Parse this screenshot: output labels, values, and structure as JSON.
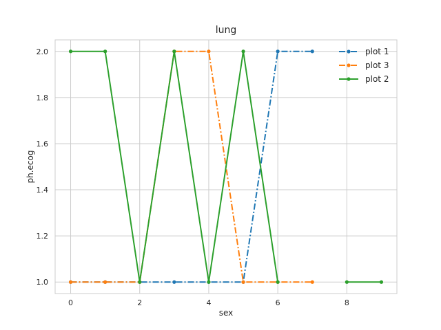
{
  "chart_data": {
    "type": "line",
    "title": "lung",
    "xlabel": "sex",
    "ylabel": "ph.ecog",
    "xlim": [
      -0.45,
      9.45
    ],
    "ylim": [
      0.95,
      2.05
    ],
    "xticks": [
      0,
      2,
      4,
      6,
      8
    ],
    "yticks": [
      1.0,
      1.2,
      1.4,
      1.6,
      1.8,
      2.0
    ],
    "xtick_labels": [
      "0",
      "2",
      "4",
      "6",
      "8"
    ],
    "ytick_labels": [
      "1.0",
      "1.2",
      "1.4",
      "1.6",
      "1.8",
      "2.0"
    ],
    "grid": true,
    "legend_position": "top-right",
    "series": [
      {
        "name": "plot 1",
        "color": "#1f77b4",
        "linestyle": "dashdot",
        "marker": "circle",
        "x": [
          0,
          1,
          2,
          3,
          4,
          5,
          6,
          7
        ],
        "y": [
          1,
          1,
          1,
          1,
          1,
          1,
          2,
          2
        ]
      },
      {
        "name": "plot 3",
        "color": "#ff7f0e",
        "linestyle": "dashdot",
        "marker": "circle",
        "x": [
          0,
          1,
          2,
          3,
          4,
          5,
          6,
          7
        ],
        "y": [
          1,
          1,
          1,
          2,
          2,
          1,
          1,
          1
        ]
      },
      {
        "name": "plot 2",
        "color": "#2ca02c",
        "linestyle": "solid",
        "marker": "circle",
        "x": [
          0,
          1,
          2,
          3,
          4,
          5,
          6,
          7,
          8,
          9
        ],
        "y": [
          2,
          2,
          1,
          2,
          1,
          2,
          1,
          null,
          1,
          1
        ]
      }
    ]
  }
}
